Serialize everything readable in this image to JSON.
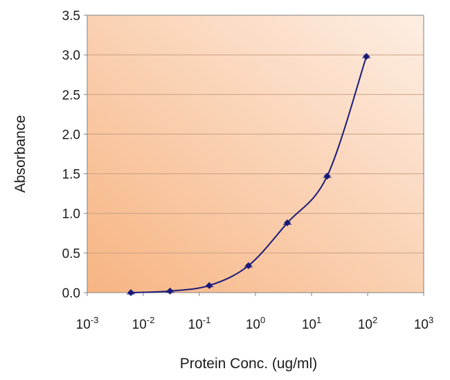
{
  "chart_data": {
    "type": "line",
    "title": "",
    "xlabel": "Protein Conc. (ug/ml)",
    "ylabel": "Absorbance",
    "x_scale": "log",
    "xlim": [
      0.001,
      1000
    ],
    "ylim": [
      0,
      3.5
    ],
    "x_ticks": [
      {
        "base": "10",
        "exp": "-3"
      },
      {
        "base": "10",
        "exp": "-2"
      },
      {
        "base": "10",
        "exp": "-1"
      },
      {
        "base": "10",
        "exp": "0"
      },
      {
        "base": "10",
        "exp": "1"
      },
      {
        "base": "10",
        "exp": "2"
      },
      {
        "base": "10",
        "exp": "3"
      }
    ],
    "y_ticks": [
      "0.0",
      "0.5",
      "1.0",
      "1.5",
      "2.0",
      "2.5",
      "3.0",
      "3.5"
    ],
    "grid": "horizontal",
    "legend": "none",
    "series": [
      {
        "x": [
          0.006,
          0.03,
          0.15,
          0.75,
          3.7,
          19,
          95
        ],
        "y": [
          0.0,
          0.02,
          0.09,
          0.34,
          0.88,
          1.47,
          2.98
        ]
      }
    ],
    "colors": {
      "plot_bg_dark": "#F7B482",
      "plot_bg_light": "#FDEEE3",
      "grid": "#C89F84",
      "line": "#1A1A78",
      "marker": "#1A1A78",
      "axis": "#808080"
    }
  }
}
